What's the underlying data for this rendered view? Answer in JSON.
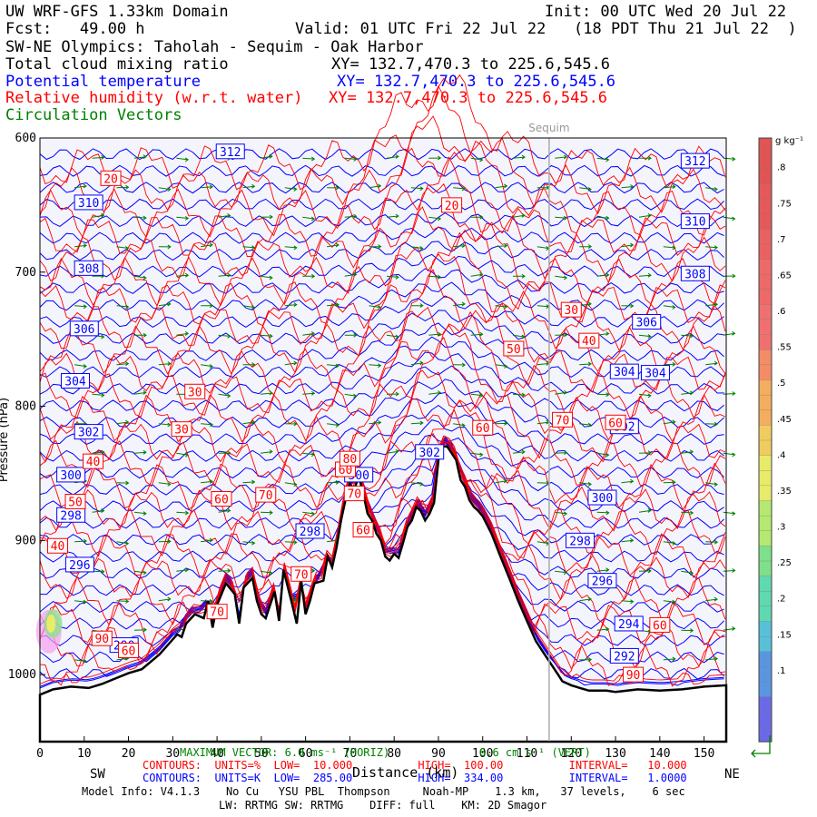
{
  "header": {
    "model": "UW WRF-GFS 1.33km Domain",
    "init": "Init: 00 UTC Wed 20 Jul 22",
    "fcst": "Fcst:   49.00 h",
    "valid": "Valid: 01 UTC Fri 22 Jul 22   (18 PDT Thu 21 Jul 22  )",
    "section": "SW-NE Olympics: Taholah - Sequim - Oak Harbor",
    "field1": "Total cloud mixing ratio",
    "field1_xy": "XY= 132.7,470.3 to 225.6,545.6",
    "field2": "Potential temperature",
    "field2_xy": "XY= 132.7,470.3 to 225.6,545.6",
    "field3": "Relative humidity (w.r.t. water)",
    "field3_xy": "XY= 132.7,470.3 to 225.6,545.6",
    "field4": "Circulation Vectors"
  },
  "colors": {
    "temperature": "#0000ff",
    "humidity": "#ff0000",
    "vectors": "#008000",
    "plot_bg": "#f4f4fc",
    "terrain": "#000000"
  },
  "chart_data": {
    "type": "area",
    "title": "SW-NE Olympics: Taholah - Sequim - Oak Harbor",
    "xlabel": "Distance (km)",
    "ylabel": "Pressure (hPa)",
    "xlim": [
      0,
      155
    ],
    "ylim": [
      1050,
      600
    ],
    "x_ticks": [
      "0",
      "10",
      "20",
      "30",
      "40",
      "50",
      "60",
      "70",
      "80",
      "90",
      "100",
      "110",
      "120",
      "130",
      "140",
      "150"
    ],
    "x_tick_values": [
      0,
      10,
      20,
      30,
      40,
      50,
      60,
      70,
      80,
      90,
      100,
      110,
      120,
      130,
      140,
      150
    ],
    "y_ticks": [
      "600",
      "700",
      "800",
      "900",
      "1000"
    ],
    "y_tick_values": [
      600,
      700,
      800,
      900,
      1000
    ],
    "ends": {
      "left": "SW",
      "right": "NE"
    },
    "landmark": {
      "name": "Sequim",
      "x": 115
    },
    "terrain_profile": {
      "x": [
        0,
        3,
        7,
        11,
        14,
        17,
        20,
        23,
        27,
        31,
        32,
        33,
        35,
        37,
        38,
        39,
        40,
        42,
        44,
        45,
        46,
        48,
        49,
        50,
        51,
        53,
        54,
        55,
        57,
        58,
        59,
        60,
        61,
        62,
        64,
        65,
        66,
        67,
        68,
        69,
        70,
        71,
        72,
        73,
        74,
        75,
        76,
        77,
        78,
        79,
        80,
        81,
        82,
        83,
        84,
        85,
        86,
        87,
        88,
        89,
        90,
        91,
        92,
        93,
        94,
        95,
        96,
        97,
        98,
        99,
        100,
        102,
        104,
        106,
        108,
        110,
        112,
        114,
        116,
        117,
        118,
        120,
        121,
        122,
        124,
        126,
        128,
        130,
        135,
        140,
        145,
        150,
        155
      ],
      "p": [
        1015,
        1011,
        1009,
        1010,
        1007,
        1003,
        999,
        996,
        985,
        970,
        972,
        962,
        955,
        958,
        945,
        965,
        948,
        932,
        940,
        962,
        935,
        928,
        945,
        955,
        958,
        938,
        960,
        922,
        948,
        962,
        930,
        955,
        945,
        932,
        930,
        912,
        920,
        905,
        885,
        870,
        858,
        862,
        852,
        865,
        880,
        885,
        895,
        900,
        912,
        915,
        910,
        913,
        902,
        890,
        885,
        875,
        878,
        885,
        880,
        872,
        840,
        830,
        830,
        835,
        840,
        855,
        860,
        870,
        875,
        878,
        882,
        895,
        912,
        928,
        945,
        960,
        975,
        985,
        995,
        1000,
        1005,
        1008,
        1009,
        1010,
        1012,
        1012,
        1012,
        1013,
        1011,
        1012,
        1011,
        1009,
        1008
      ]
    },
    "series": [
      {
        "name": "Potential temperature",
        "units": "K",
        "contour_labels": [
          {
            "text": "312",
            "x": 43,
            "p": 610
          },
          {
            "text": "312",
            "x": 148,
            "p": 617
          },
          {
            "text": "310",
            "x": 11,
            "p": 648
          },
          {
            "text": "310",
            "x": 148,
            "p": 662
          },
          {
            "text": "308",
            "x": 11,
            "p": 697
          },
          {
            "text": "308",
            "x": 148,
            "p": 701
          },
          {
            "text": "306",
            "x": 10,
            "p": 742
          },
          {
            "text": "306",
            "x": 137,
            "p": 737
          },
          {
            "text": "304",
            "x": 8,
            "p": 781
          },
          {
            "text": "304",
            "x": 139,
            "p": 775
          },
          {
            "text": "304",
            "x": 132,
            "p": 774
          },
          {
            "text": "302",
            "x": 11,
            "p": 819
          },
          {
            "text": "302",
            "x": 88,
            "p": 834
          },
          {
            "text": "302",
            "x": 132,
            "p": 815
          },
          {
            "text": "300",
            "x": 7,
            "p": 851
          },
          {
            "text": "300",
            "x": 127,
            "p": 868
          },
          {
            "text": "300",
            "x": 72,
            "p": 851
          },
          {
            "text": "298",
            "x": 7,
            "p": 881
          },
          {
            "text": "298",
            "x": 61,
            "p": 893
          },
          {
            "text": "298",
            "x": 122,
            "p": 900
          },
          {
            "text": "296",
            "x": 9,
            "p": 918
          },
          {
            "text": "296",
            "x": 127,
            "p": 930
          },
          {
            "text": "294",
            "x": 133,
            "p": 962
          },
          {
            "text": "292",
            "x": 132,
            "p": 986
          },
          {
            "text": "290",
            "x": 19,
            "p": 978
          }
        ]
      },
      {
        "name": "Relative humidity (w.r.t. water)",
        "units": "%",
        "contour_labels": [
          {
            "text": "20",
            "x": 16,
            "p": 630
          },
          {
            "text": "20",
            "x": 93,
            "p": 650
          },
          {
            "text": "30",
            "x": 35,
            "p": 789
          },
          {
            "text": "30",
            "x": 32,
            "p": 817
          },
          {
            "text": "30",
            "x": 120,
            "p": 728
          },
          {
            "text": "40",
            "x": 12,
            "p": 841
          },
          {
            "text": "40",
            "x": 124,
            "p": 751
          },
          {
            "text": "40",
            "x": 4,
            "p": 904
          },
          {
            "text": "50",
            "x": 8,
            "p": 871
          },
          {
            "text": "50",
            "x": 107,
            "p": 757
          },
          {
            "text": "60",
            "x": 41,
            "p": 869
          },
          {
            "text": "60",
            "x": 100,
            "p": 816
          },
          {
            "text": "60",
            "x": 69,
            "p": 847
          },
          {
            "text": "60",
            "x": 73,
            "p": 892
          },
          {
            "text": "60",
            "x": 130,
            "p": 812
          },
          {
            "text": "60",
            "x": 140,
            "p": 963
          },
          {
            "text": "60",
            "x": 20,
            "p": 982
          },
          {
            "text": "70",
            "x": 51,
            "p": 866
          },
          {
            "text": "70",
            "x": 71,
            "p": 865
          },
          {
            "text": "70",
            "x": 118,
            "p": 810
          },
          {
            "text": "70",
            "x": 59,
            "p": 925
          },
          {
            "text": "70",
            "x": 40,
            "p": 953
          },
          {
            "text": "80",
            "x": 70,
            "p": 839
          },
          {
            "text": "90",
            "x": 14,
            "p": 973
          },
          {
            "text": "90",
            "x": 134,
            "p": 1000
          }
        ]
      },
      {
        "name": "Total cloud mixing ratio",
        "units": "g kg-1"
      }
    ],
    "colorbar": {
      "units": "g kg⁻¹",
      "labels": [
        ".8",
        ".75",
        ".7",
        ".65",
        ".6",
        ".55",
        ".5",
        ".45",
        ".4",
        ".35",
        ".3",
        ".25",
        ".2",
        ".15",
        ".1"
      ],
      "values": [
        0.8,
        0.75,
        0.7,
        0.65,
        0.6,
        0.55,
        0.5,
        0.45,
        0.4,
        0.35,
        0.3,
        0.25,
        0.2,
        0.15,
        0.1
      ]
    }
  },
  "footer": {
    "max_vector_horiz": "MAXIMUM VECTOR: 6.0 ms⁻¹ (HORIZ)",
    "max_vector_vert": "6.6 cm s⁻¹ (VERT)",
    "rh_contours": "CONTOURS:  UNITS=%  LOW=  10.000          HIGH=  100.00          INTERVAL=   10.000",
    "th_contours": "CONTOURS:  UNITS=K  LOW=  285.00          HIGH=  334.00          INTERVAL=   1.0000",
    "xlabel": "Distance (km)",
    "model_info": "Model Info: V4.1.3    No Cu   YSU PBL  Thompson     Noah-MP    1.3 km,   37 levels,    6 sec",
    "physics": "LW: RRTMG SW: RRTMG    DIFF: full    KM: 2D Smagor"
  }
}
